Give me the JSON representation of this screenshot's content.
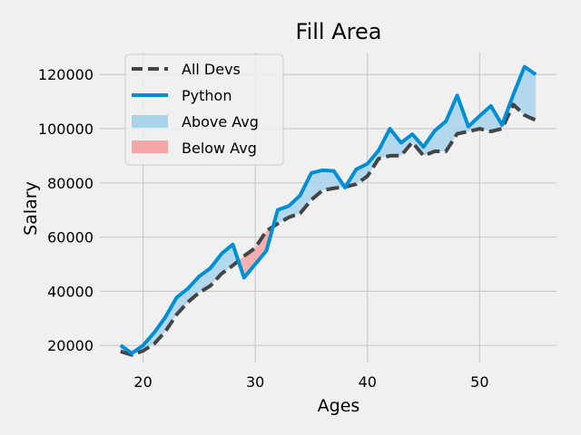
{
  "chart_data": {
    "type": "line",
    "title": "Fill Area",
    "xlabel": "Ages",
    "ylabel": "Salary",
    "xlim": [
      16.15,
      56.85
    ],
    "ylim": [
      13700,
      128100
    ],
    "xticks": [
      20,
      30,
      40,
      50
    ],
    "yticks": [
      20000,
      40000,
      60000,
      80000,
      100000,
      120000
    ],
    "grid": true,
    "legend_position": "upper-left",
    "x": [
      18,
      19,
      20,
      21,
      22,
      23,
      24,
      25,
      26,
      27,
      28,
      29,
      30,
      31,
      32,
      33,
      34,
      35,
      36,
      37,
      38,
      39,
      40,
      41,
      42,
      43,
      44,
      45,
      46,
      47,
      48,
      49,
      50,
      51,
      52,
      53,
      54,
      55
    ],
    "series": [
      {
        "name": "All Devs",
        "color": "#444444",
        "style": "dashed",
        "values": [
          17784,
          16500,
          18012,
          20628,
          25206,
          31446,
          36000,
          39500,
          42000,
          46500,
          49500,
          53000,
          56000,
          62316,
          64928,
          67317,
          68748,
          73752,
          77232,
          78000,
          78508,
          79536,
          82488,
          88935,
          90000,
          90056,
          95000,
          90000,
          91633,
          91660,
          98150,
          98964,
          100000,
          98988,
          100000,
          108923,
          105000,
          103117
        ]
      },
      {
        "name": "Python",
        "color": "#008fd5",
        "style": "solid",
        "values": [
          20046,
          17100,
          20000,
          24744,
          30500,
          37732,
          41000,
          45500,
          48500,
          53850,
          57287,
          45000,
          50000,
          55000,
          70000,
          71496,
          75370,
          83640,
          84666,
          84392,
          78254,
          85000,
          87038,
          91991,
          100000,
          94796,
          97962,
          93302,
          99240,
          102736,
          112285,
          100771,
          104708,
          108423,
          101407,
          112542,
          122870,
          120000
        ]
      }
    ],
    "fills": [
      {
        "label": "Above Avg",
        "color": "#a8d4ec"
      },
      {
        "label": "Below Avg",
        "color": "#f4a5a5"
      }
    ],
    "legend_entries": [
      "All Devs",
      "Python",
      "Above Avg",
      "Below Avg"
    ]
  }
}
